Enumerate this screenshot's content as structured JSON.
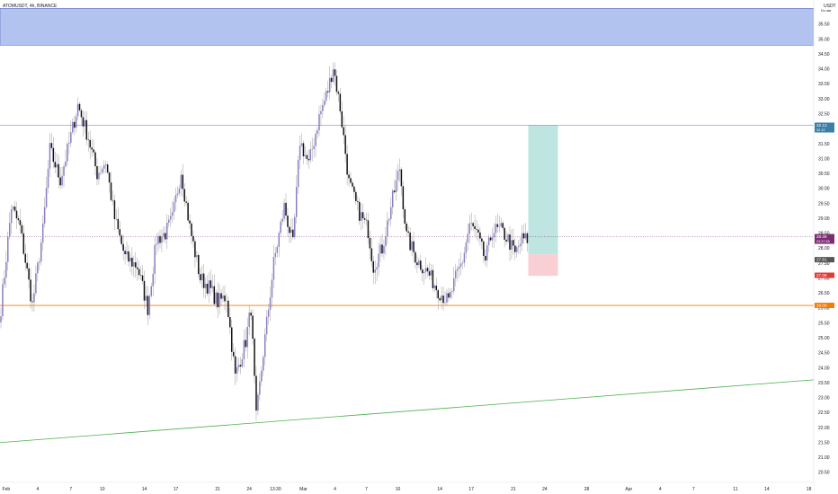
{
  "header": {
    "symbol_line": "ATOMUSDT, 4h, BINANCE",
    "currency": "USDT",
    "currency_sub": "Do use"
  },
  "colors": {
    "up_candle": "#8e7cc3",
    "down_candle": "#111111",
    "wick": "#9e9e9e",
    "resistance_zone": "#b3c3f0",
    "resistance_border": "#3f51b5",
    "target_line": "#7f8fd6",
    "support_line": "#f57c00",
    "trendline": "#4caf50",
    "profit_zone": "#bfe5e2",
    "loss_zone": "#f8d0d4",
    "price_badge": "#7b2d71",
    "target_badge": "#3b7fa6",
    "support_badge": "#f57c00"
  },
  "chart_data": {
    "type": "candlestick",
    "title": "",
    "xlabel": "",
    "ylabel": "",
    "ylim": [
      20.25,
      36.0
    ],
    "grid": false,
    "y_ticks": [
      "35.50",
      "35.00",
      "34.50",
      "34.00",
      "33.50",
      "33.00",
      "32.50",
      "32.00",
      "31.50",
      "31.00",
      "30.50",
      "30.00",
      "29.50",
      "29.00",
      "28.50",
      "28.00",
      "27.50",
      "27.00",
      "26.50",
      "26.00",
      "25.50",
      "25.00",
      "24.50",
      "24.00",
      "23.50",
      "23.00",
      "22.50",
      "22.00",
      "21.50",
      "21.00",
      "20.50"
    ],
    "y_tick_values": [
      35.5,
      35.0,
      34.5,
      34.0,
      33.5,
      33.0,
      32.5,
      32.0,
      31.5,
      31.0,
      30.5,
      30.0,
      29.5,
      29.0,
      28.5,
      28.0,
      27.5,
      27.0,
      26.5,
      26.0,
      25.5,
      25.0,
      24.5,
      24.0,
      23.5,
      23.0,
      22.5,
      22.0,
      21.5,
      21.0,
      20.5
    ],
    "x_ticks": [
      {
        "label": "Feb",
        "bar": 3
      },
      {
        "label": "4",
        "bar": 21
      },
      {
        "label": "7",
        "bar": 40
      },
      {
        "label": "10",
        "bar": 58
      },
      {
        "label": "14",
        "bar": 82
      },
      {
        "label": "17",
        "bar": 100
      },
      {
        "label": "21",
        "bar": 124
      },
      {
        "label": "24",
        "bar": 142
      },
      {
        "label": "13:30",
        "bar": 157
      },
      {
        "label": "Mar",
        "bar": 173
      },
      {
        "label": "4",
        "bar": 191
      },
      {
        "label": "7",
        "bar": 209
      },
      {
        "label": "10",
        "bar": 227
      },
      {
        "label": "14",
        "bar": 251
      },
      {
        "label": "17",
        "bar": 269
      },
      {
        "label": "21",
        "bar": 293
      },
      {
        "label": "24",
        "bar": 311
      },
      {
        "label": "28",
        "bar": 335
      },
      {
        "label": "Apr",
        "bar": 359
      },
      {
        "label": "4",
        "bar": 377
      },
      {
        "label": "7",
        "bar": 396
      },
      {
        "label": "11",
        "bar": 420
      },
      {
        "label": "14",
        "bar": 438
      },
      {
        "label": "18",
        "bar": 462
      }
    ],
    "price_path_keypoints": [
      [
        0,
        26.0
      ],
      [
        6,
        29.4
      ],
      [
        11,
        28.7
      ],
      [
        18,
        26.1
      ],
      [
        24,
        28.6
      ],
      [
        28,
        31.3
      ],
      [
        34,
        30.3
      ],
      [
        39,
        31.5
      ],
      [
        44,
        32.8
      ],
      [
        50,
        31.7
      ],
      [
        55,
        30.5
      ],
      [
        60,
        30.9
      ],
      [
        65,
        29.0
      ],
      [
        71,
        27.7
      ],
      [
        78,
        27.4
      ],
      [
        84,
        26.0
      ],
      [
        89,
        28.3
      ],
      [
        94,
        28.5
      ],
      [
        98,
        29.0
      ],
      [
        103,
        30.6
      ],
      [
        108,
        28.7
      ],
      [
        114,
        27.0
      ],
      [
        119,
        26.7
      ],
      [
        124,
        26.2
      ],
      [
        129,
        26.4
      ],
      [
        134,
        23.7
      ],
      [
        140,
        24.9
      ],
      [
        143,
        26.0
      ],
      [
        146,
        22.3
      ],
      [
        150,
        24.5
      ],
      [
        156,
        27.5
      ],
      [
        162,
        29.4
      ],
      [
        167,
        28.1
      ],
      [
        171,
        31.6
      ],
      [
        176,
        30.8
      ],
      [
        182,
        32.4
      ],
      [
        187,
        33.3
      ],
      [
        190,
        34.1
      ],
      [
        194,
        32.7
      ],
      [
        199,
        30.2
      ],
      [
        204,
        29.3
      ],
      [
        210,
        28.6
      ],
      [
        213,
        27.4
      ],
      [
        218,
        28.0
      ],
      [
        223,
        29.4
      ],
      [
        228,
        30.7
      ],
      [
        232,
        28.4
      ],
      [
        238,
        27.6
      ],
      [
        244,
        27.2
      ],
      [
        250,
        26.6
      ],
      [
        256,
        26.2
      ],
      [
        260,
        27.0
      ],
      [
        264,
        27.6
      ],
      [
        268,
        28.8
      ],
      [
        272,
        28.5
      ],
      [
        277,
        27.6
      ],
      [
        281,
        28.6
      ],
      [
        286,
        28.6
      ],
      [
        290,
        28.3
      ],
      [
        294,
        27.8
      ],
      [
        298,
        28.3
      ],
      [
        301,
        28.3
      ]
    ],
    "last_bar": 301,
    "resistance_zone": {
      "from": 34.8,
      "to": 36.0
    },
    "target_line": 32.12,
    "support_line": 26.09,
    "current_price_line": 28.39,
    "trendline": {
      "start": {
        "bar": 0,
        "price": 21.5
      },
      "end": {
        "bar": 465,
        "price": 23.6
      }
    },
    "long_position": {
      "start_bar": 300,
      "end_bar": 317,
      "entry": 27.8,
      "target": 32.12,
      "stop": 27.08
    },
    "price_labels": {
      "target": {
        "value": "32.12",
        "sub": "32.12"
      },
      "current": {
        "value": "28.39",
        "sub": "03:37:45"
      },
      "entry": {
        "value": "27.81"
      },
      "stop": {
        "value": "27.08"
      },
      "support": {
        "value": "26.09"
      }
    }
  }
}
